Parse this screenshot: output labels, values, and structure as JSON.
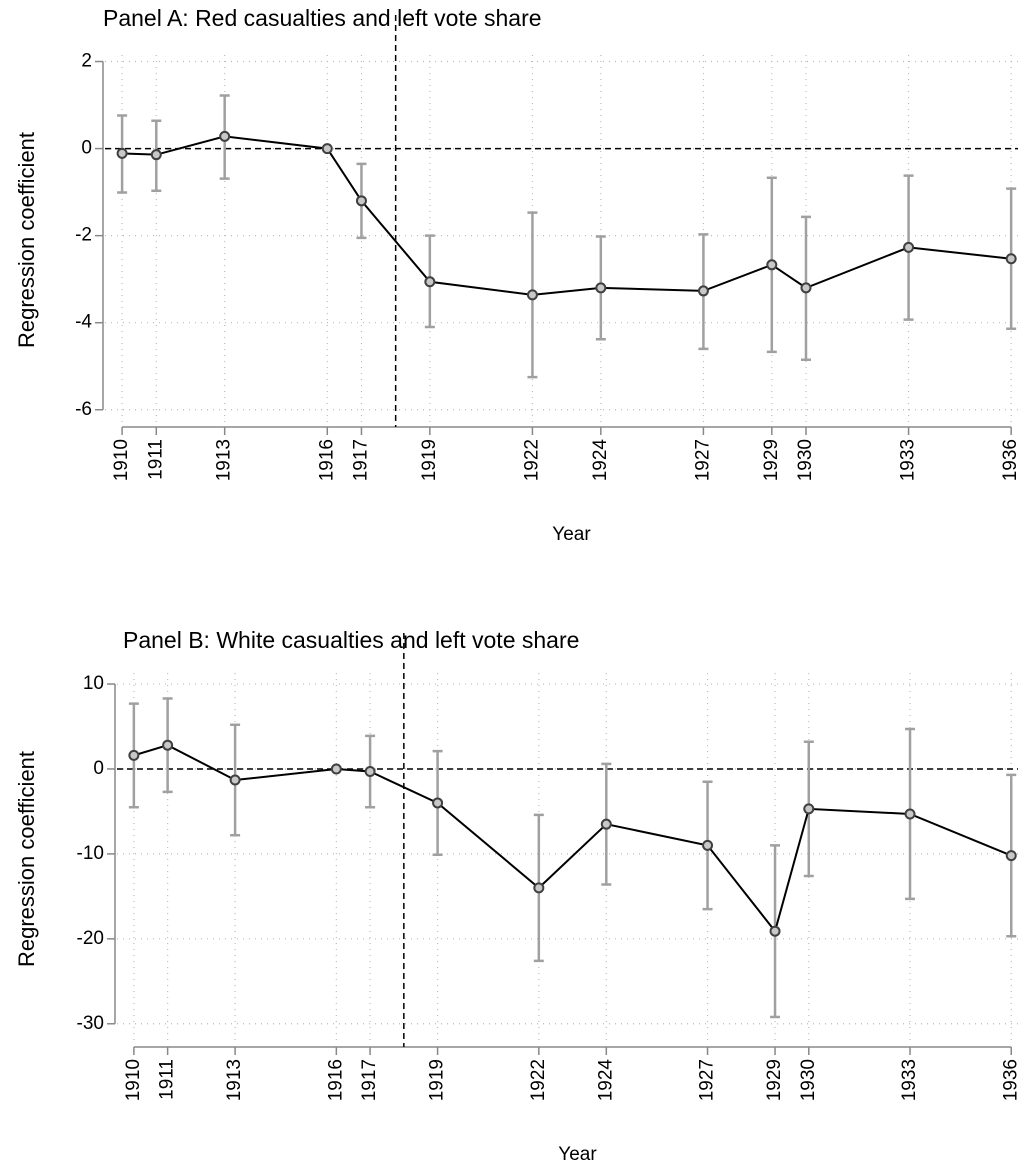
{
  "chart_data": [
    {
      "type": "line",
      "title": "Panel A: Red casualties and left vote share",
      "x_label": "Year",
      "y_label": "Regression coefficient",
      "x": [
        1910,
        1911,
        1913,
        1916,
        1917,
        1919,
        1922,
        1924,
        1927,
        1929,
        1930,
        1933,
        1936
      ],
      "values": [
        -0.11,
        -0.14,
        0.28,
        0,
        -1.2,
        -3.06,
        -3.36,
        -3.2,
        -3.27,
        -2.67,
        -3.2,
        -2.27,
        -2.53
      ],
      "ci_low": [
        -1.01,
        -0.97,
        -0.69,
        null,
        -2.05,
        -4.1,
        -5.25,
        -4.38,
        -4.6,
        -4.67,
        -4.85,
        -3.93,
        -4.14
      ],
      "ci_high": [
        0.76,
        0.64,
        1.22,
        null,
        -0.35,
        -2.0,
        -1.47,
        -2.02,
        -1.97,
        -0.67,
        -1.57,
        -0.62,
        -0.92
      ],
      "color": "#000000",
      "ci_color": "#a0a0a0",
      "xlim": [
        1909.5,
        1936.2
      ],
      "xticks": [
        1910,
        1911,
        1913,
        1916,
        1917,
        1919,
        1922,
        1924,
        1927,
        1929,
        1930,
        1933,
        1936
      ],
      "ylim": [
        -6.35,
        2.15
      ],
      "yticks": [
        -6,
        -4,
        -2,
        0,
        2
      ],
      "vline": 1918,
      "hline": 0,
      "grid": true
    },
    {
      "type": "line",
      "title": "Panel B: White casualties and left vote share",
      "x_label": "Year",
      "y_label": "Regression coefficient",
      "x": [
        1910,
        1911,
        1913,
        1916,
        1917,
        1919,
        1922,
        1924,
        1927,
        1929,
        1930,
        1933,
        1936
      ],
      "values": [
        1.6,
        2.8,
        -1.3,
        0,
        -0.3,
        -4.0,
        -14.0,
        -6.5,
        -9.0,
        -19.1,
        -4.7,
        -5.3,
        -10.2
      ],
      "ci_low": [
        -4.5,
        -2.7,
        -7.8,
        null,
        -4.5,
        -10.1,
        -22.6,
        -13.6,
        -16.5,
        -29.2,
        -12.6,
        -15.3,
        -19.7
      ],
      "ci_high": [
        7.7,
        8.3,
        5.2,
        null,
        3.9,
        2.1,
        -5.4,
        0.6,
        -1.5,
        -9.0,
        3.2,
        4.7,
        -0.7
      ],
      "color": "#000000",
      "ci_color": "#a0a0a0",
      "xlim": [
        1909.5,
        1936.2
      ],
      "xticks": [
        1910,
        1911,
        1913,
        1916,
        1917,
        1919,
        1922,
        1924,
        1927,
        1929,
        1930,
        1933,
        1936
      ],
      "ylim": [
        -32.5,
        11.3
      ],
      "yticks": [
        -30,
        -20,
        -10,
        0,
        10
      ],
      "vline": 1918,
      "hline": 0,
      "grid": true
    }
  ]
}
